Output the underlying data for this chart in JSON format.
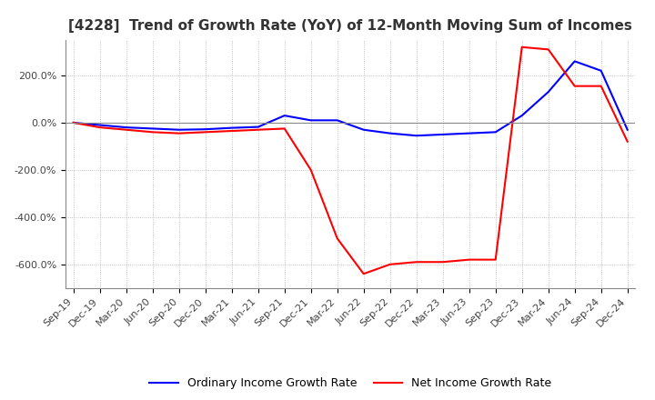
{
  "title": "[4228]  Trend of Growth Rate (YoY) of 12-Month Moving Sum of Incomes",
  "ylim": [
    -700,
    350
  ],
  "yticks": [
    200,
    0,
    -200,
    -400,
    -600
  ],
  "ytick_labels": [
    "200.0%",
    "0.0%",
    "-200.0%",
    "-400.0%",
    "-600.0%"
  ],
  "background_color": "#ffffff",
  "grid_color": "#b0b0b0",
  "legend_labels": [
    "Ordinary Income Growth Rate",
    "Net Income Growth Rate"
  ],
  "legend_colors": [
    "#0000ff",
    "#ff0000"
  ],
  "x_labels": [
    "Sep-19",
    "Dec-19",
    "Mar-20",
    "Jun-20",
    "Sep-20",
    "Dec-20",
    "Mar-21",
    "Jun-21",
    "Sep-21",
    "Dec-21",
    "Mar-22",
    "Jun-22",
    "Sep-22",
    "Dec-22",
    "Mar-23",
    "Jun-23",
    "Sep-23",
    "Dec-23",
    "Mar-24",
    "Jun-24",
    "Sep-24",
    "Dec-24"
  ],
  "ordinary_income": [
    0,
    -10,
    -20,
    -25,
    -30,
    -28,
    -22,
    -18,
    30,
    10,
    10,
    -30,
    -45,
    -55,
    -50,
    -45,
    -40,
    30,
    130,
    260,
    220,
    -30
  ],
  "net_income": [
    0,
    -20,
    -30,
    -40,
    -45,
    -40,
    -35,
    -30,
    -25,
    -200,
    -490,
    -640,
    -600,
    -590,
    -590,
    -580,
    -580,
    320,
    310,
    155,
    155,
    -80
  ],
  "title_fontsize": 11,
  "tick_fontsize": 8,
  "legend_fontsize": 9,
  "line_width": 1.5
}
